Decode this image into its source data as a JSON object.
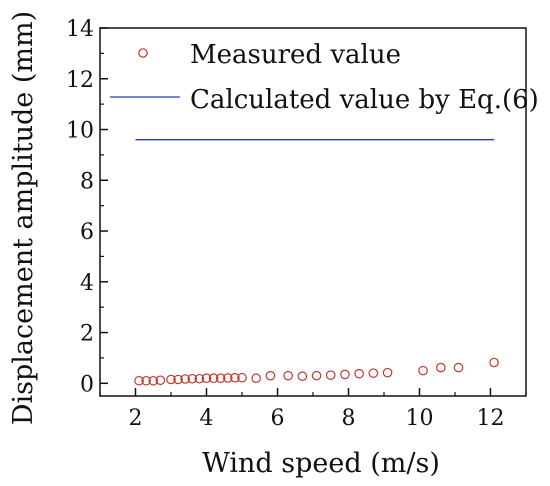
{
  "chart_data": {
    "type": "scatter",
    "title": "",
    "xlabel": "Wind speed (m/s)",
    "ylabel": "Displacement amplitude (mm)",
    "xlim": [
      1,
      13
    ],
    "ylim": [
      -0.5,
      14
    ],
    "xticks": [
      2,
      4,
      6,
      8,
      10,
      12
    ],
    "yticks": [
      0,
      2,
      4,
      6,
      8,
      10,
      12,
      14
    ],
    "xtick_labels": [
      "2",
      "4",
      "6",
      "8",
      "10",
      "12"
    ],
    "ytick_labels": [
      "0",
      "2",
      "4",
      "6",
      "8",
      "10",
      "12",
      "14"
    ],
    "grid": false,
    "legend_position": "top",
    "series": [
      {
        "name": "Measured value",
        "marker": "open-circle",
        "color": "#c0392b",
        "x": [
          2.1,
          2.3,
          2.5,
          2.7,
          3.0,
          3.2,
          3.4,
          3.6,
          3.8,
          4.0,
          4.2,
          4.4,
          4.6,
          4.8,
          5.0,
          5.4,
          5.8,
          6.3,
          6.7,
          7.1,
          7.5,
          7.9,
          8.3,
          8.7,
          9.1,
          10.1,
          10.6,
          11.1,
          12.1
        ],
        "y": [
          0.1,
          0.1,
          0.1,
          0.12,
          0.15,
          0.15,
          0.17,
          0.18,
          0.18,
          0.2,
          0.2,
          0.2,
          0.21,
          0.22,
          0.22,
          0.2,
          0.3,
          0.3,
          0.28,
          0.3,
          0.32,
          0.35,
          0.38,
          0.4,
          0.42,
          0.5,
          0.62,
          0.62,
          0.82
        ]
      },
      {
        "name": "Calculated value by Eq.(6)",
        "marker": "line",
        "color": "#2b35c9",
        "x": [
          2.0,
          12.1
        ],
        "y": [
          9.6,
          9.6
        ]
      }
    ]
  }
}
